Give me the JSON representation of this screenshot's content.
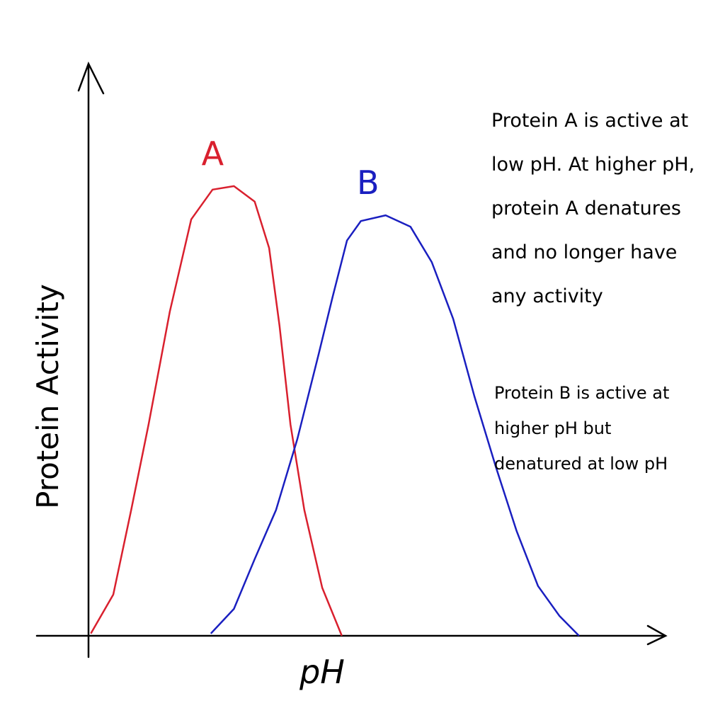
{
  "chart_data": {
    "type": "line",
    "x_label": "pH",
    "y_label": "Protein Activity",
    "xlim": [
      0,
      100
    ],
    "ylim": [
      0,
      100
    ],
    "series": [
      {
        "name": "A",
        "color": "#d9202e",
        "x": [
          0.4,
          4.3,
          7.4,
          10.4,
          14.1,
          17.8,
          21.5,
          25.2,
          28.8,
          31.3,
          33.1,
          35.0,
          37.4,
          40.5,
          43.9
        ],
        "values": [
          0.4,
          7.2,
          22.0,
          36.9,
          56.7,
          72.8,
          78.0,
          78.6,
          75.9,
          67.8,
          54.2,
          36.9,
          22.0,
          8.4,
          0
        ]
      },
      {
        "name": "B",
        "color": "#1a1fc0",
        "x": [
          21.2,
          25.2,
          28.8,
          32.5,
          36.2,
          39.9,
          42.3,
          44.8,
          47.2,
          51.5,
          55.8,
          59.5,
          63.2,
          66.9,
          70.6,
          74.2,
          77.9,
          81.6,
          85.0
        ],
        "values": [
          0.4,
          4.7,
          13.4,
          22.0,
          34.4,
          49.3,
          59.2,
          69.1,
          72.5,
          73.5,
          71.5,
          65.3,
          55.4,
          41.8,
          29.5,
          18.3,
          8.7,
          3.5,
          0
        ]
      }
    ],
    "annotations": [
      "Protein A is active at low pH. At higher pH, protein A denatures and no longer have any activity",
      "Protein B is active at higher pH but denatured at low pH"
    ]
  }
}
